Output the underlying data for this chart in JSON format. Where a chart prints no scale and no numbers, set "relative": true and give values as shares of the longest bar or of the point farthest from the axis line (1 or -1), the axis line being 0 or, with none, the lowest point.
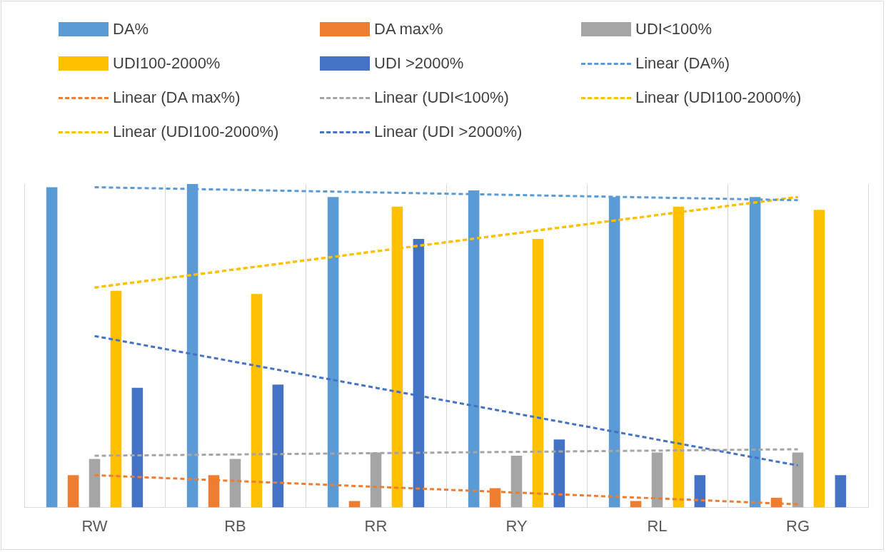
{
  "chart_data": {
    "type": "bar",
    "relative": true,
    "categories": [
      "RW",
      "RB",
      "RR",
      "RY",
      "RL",
      "RG"
    ],
    "grid": "x",
    "legend": "top",
    "marker": "none",
    "series": [
      {
        "name": "DA%",
        "color": "#5b9bd5",
        "values": [
          0.99,
          1,
          0.96,
          0.98,
          0.96,
          0.96
        ]
      },
      {
        "name": "DA max%",
        "color": "#ed7d31",
        "values": [
          0.1,
          0.1,
          0.02,
          0.06,
          0.02,
          0.03
        ]
      },
      {
        "name": "UDI<100%",
        "color": "#a5a5a5",
        "values": [
          0.15,
          0.15,
          0.17,
          0.16,
          0.17,
          0.17
        ]
      },
      {
        "name": "UDI100-2000%",
        "color": "#ffc000",
        "values": [
          0.67,
          0.66,
          0.93,
          0.83,
          0.93,
          0.92
        ]
      },
      {
        "name": "UDI >2000%",
        "color": "#4472c4",
        "values": [
          0.37,
          0.38,
          0.83,
          0.21,
          0.1,
          0.1
        ]
      },
      {
        "name": "Linear (DA%)",
        "type": "line",
        "line_style": "dashed",
        "color": "#5b9bd5",
        "values": [
          0.99,
          null,
          null,
          null,
          null,
          0.95
        ]
      },
      {
        "name": "Linear (DA max%)",
        "type": "line",
        "line_style": "dashed",
        "color": "#ed7d31",
        "values": [
          0.1,
          null,
          null,
          null,
          null,
          0.01
        ]
      },
      {
        "name": "Linear (UDI<100%)",
        "type": "line",
        "line_style": "dashed",
        "color": "#a5a5a5",
        "values": [
          0.16,
          null,
          null,
          null,
          null,
          0.18
        ]
      },
      {
        "name": "Linear (UDI100-2000%)",
        "type": "line",
        "line_style": "dashed",
        "color": "#ffc000",
        "values": [
          0.68,
          null,
          null,
          null,
          null,
          0.96
        ]
      },
      {
        "name": "Linear (UDI100-2000%)",
        "type": "line",
        "line_style": "dashed",
        "color": "#ffc000",
        "values": [
          0.68,
          null,
          null,
          null,
          null,
          0.96
        ]
      },
      {
        "name": "Linear (UDI >2000%)",
        "type": "line",
        "line_style": "dashed",
        "color": "#4472c4",
        "values": [
          0.53,
          null,
          null,
          null,
          null,
          0.13
        ]
      }
    ]
  }
}
